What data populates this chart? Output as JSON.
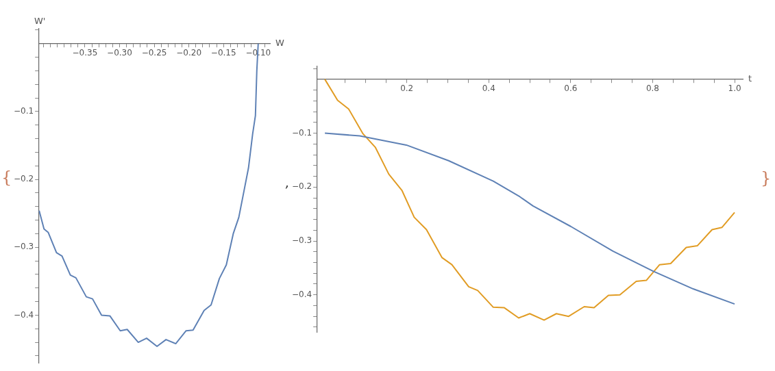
{
  "chart_data": [
    {
      "type": "line",
      "xlabel": "W",
      "ylabel": "W'",
      "marker": "none",
      "grid": false,
      "annotations": [
        "{",
        ","
      ],
      "xlim": [
        -0.417,
        -0.083
      ],
      "ylim": [
        -0.471,
        0.022
      ],
      "xticks": [
        {
          "value": -0.41,
          "label": null
        },
        {
          "value": -0.4,
          "label": null
        },
        {
          "value": -0.39,
          "label": null
        },
        {
          "value": -0.38,
          "label": null
        },
        {
          "value": -0.37,
          "label": null
        },
        {
          "value": -0.36,
          "label": null
        },
        {
          "value": -0.35,
          "label": "−0.35"
        },
        {
          "value": -0.34,
          "label": null
        },
        {
          "value": -0.33,
          "label": null
        },
        {
          "value": -0.32,
          "label": null
        },
        {
          "value": -0.31,
          "label": null
        },
        {
          "value": -0.3,
          "label": "−0.30"
        },
        {
          "value": -0.29,
          "label": null
        },
        {
          "value": -0.28,
          "label": null
        },
        {
          "value": -0.27,
          "label": null
        },
        {
          "value": -0.26,
          "label": null
        },
        {
          "value": -0.25,
          "label": "−0.25"
        },
        {
          "value": -0.24,
          "label": null
        },
        {
          "value": -0.23,
          "label": null
        },
        {
          "value": -0.22,
          "label": null
        },
        {
          "value": -0.21,
          "label": null
        },
        {
          "value": -0.2,
          "label": "−0.20"
        },
        {
          "value": -0.19,
          "label": null
        },
        {
          "value": -0.18,
          "label": null
        },
        {
          "value": -0.17,
          "label": null
        },
        {
          "value": -0.16,
          "label": null
        },
        {
          "value": -0.15,
          "label": "−0.15"
        },
        {
          "value": -0.14,
          "label": null
        },
        {
          "value": -0.13,
          "label": null
        },
        {
          "value": -0.12,
          "label": null
        },
        {
          "value": -0.11,
          "label": null
        },
        {
          "value": -0.1,
          "label": "−0.10"
        },
        {
          "value": -0.09,
          "label": null
        }
      ],
      "yticks": [
        {
          "value": 0.02,
          "label": null
        },
        {
          "value": -0.02,
          "label": null
        },
        {
          "value": -0.04,
          "label": null
        },
        {
          "value": -0.06,
          "label": null
        },
        {
          "value": -0.08,
          "label": null
        },
        {
          "value": -0.1,
          "label": "−0.1"
        },
        {
          "value": -0.12,
          "label": null
        },
        {
          "value": -0.14,
          "label": null
        },
        {
          "value": -0.16,
          "label": null
        },
        {
          "value": -0.18,
          "label": null
        },
        {
          "value": -0.2,
          "label": "−0.2"
        },
        {
          "value": -0.22,
          "label": null
        },
        {
          "value": -0.24,
          "label": null
        },
        {
          "value": -0.26,
          "label": null
        },
        {
          "value": -0.28,
          "label": null
        },
        {
          "value": -0.3,
          "label": "−0.3"
        },
        {
          "value": -0.32,
          "label": null
        },
        {
          "value": -0.34,
          "label": null
        },
        {
          "value": -0.36,
          "label": null
        },
        {
          "value": -0.38,
          "label": null
        },
        {
          "value": -0.4,
          "label": "−0.4"
        },
        {
          "value": -0.42,
          "label": null
        },
        {
          "value": -0.44,
          "label": null
        },
        {
          "value": -0.46,
          "label": null
        }
      ],
      "series": [
        {
          "color": "#5e81b5",
          "x": [
            -0.416,
            -0.409,
            -0.403,
            -0.391,
            -0.383,
            -0.371,
            -0.363,
            -0.348,
            -0.339,
            -0.326,
            -0.314,
            -0.299,
            -0.289,
            -0.273,
            -0.261,
            -0.246,
            -0.233,
            -0.219,
            -0.204,
            -0.194,
            -0.178,
            -0.168,
            -0.156,
            -0.146,
            -0.136,
            -0.128,
            -0.123,
            -0.114,
            -0.108,
            -0.104,
            -0.102,
            -0.1
          ],
          "values": [
            -0.246,
            -0.273,
            -0.278,
            -0.308,
            -0.313,
            -0.341,
            -0.345,
            -0.373,
            -0.376,
            -0.4,
            -0.401,
            -0.423,
            -0.421,
            -0.44,
            -0.434,
            -0.446,
            -0.436,
            -0.442,
            -0.423,
            -0.422,
            -0.393,
            -0.385,
            -0.346,
            -0.326,
            -0.28,
            -0.256,
            -0.23,
            -0.183,
            -0.133,
            -0.106,
            -0.04,
            0
          ]
        }
      ]
    },
    {
      "type": "line",
      "xlabel": "t",
      "marker": "none",
      "grid": false,
      "annotations": [
        "}"
      ],
      "xlim": [
        -0.02,
        1.02
      ],
      "ylim": [
        -0.47,
        0.024
      ],
      "xticks": [
        {
          "value": 0.05,
          "label": null
        },
        {
          "value": 0.1,
          "label": null
        },
        {
          "value": 0.15,
          "label": null
        },
        {
          "value": 0.2,
          "label": "0.2"
        },
        {
          "value": 0.25,
          "label": null
        },
        {
          "value": 0.3,
          "label": null
        },
        {
          "value": 0.35,
          "label": null
        },
        {
          "value": 0.4,
          "label": "0.4"
        },
        {
          "value": 0.45,
          "label": null
        },
        {
          "value": 0.5,
          "label": null
        },
        {
          "value": 0.55,
          "label": null
        },
        {
          "value": 0.6,
          "label": "0.6"
        },
        {
          "value": 0.65,
          "label": null
        },
        {
          "value": 0.7,
          "label": null
        },
        {
          "value": 0.75,
          "label": null
        },
        {
          "value": 0.8,
          "label": "0.8"
        },
        {
          "value": 0.85,
          "label": null
        },
        {
          "value": 0.9,
          "label": null
        },
        {
          "value": 0.95,
          "label": null
        },
        {
          "value": 1.0,
          "label": "1.0"
        }
      ],
      "yticks": [
        {
          "value": 0.02,
          "label": null
        },
        {
          "value": -0.02,
          "label": null
        },
        {
          "value": -0.04,
          "label": null
        },
        {
          "value": -0.06,
          "label": null
        },
        {
          "value": -0.08,
          "label": null
        },
        {
          "value": -0.1,
          "label": "−0.1"
        },
        {
          "value": -0.12,
          "label": null
        },
        {
          "value": -0.14,
          "label": null
        },
        {
          "value": -0.16,
          "label": null
        },
        {
          "value": -0.18,
          "label": null
        },
        {
          "value": -0.2,
          "label": "−0.2"
        },
        {
          "value": -0.22,
          "label": null
        },
        {
          "value": -0.24,
          "label": null
        },
        {
          "value": -0.26,
          "label": null
        },
        {
          "value": -0.28,
          "label": null
        },
        {
          "value": -0.3,
          "label": "−0.3"
        },
        {
          "value": -0.32,
          "label": null
        },
        {
          "value": -0.34,
          "label": null
        },
        {
          "value": -0.36,
          "label": null
        },
        {
          "value": -0.38,
          "label": null
        },
        {
          "value": -0.4,
          "label": "−0.4"
        },
        {
          "value": -0.42,
          "label": null
        },
        {
          "value": -0.44,
          "label": null
        },
        {
          "value": -0.46,
          "label": null
        }
      ],
      "series": [
        {
          "color": "#5e81b5",
          "x": [
            0,
            0.085,
            0.199,
            0.302,
            0.411,
            0.476,
            0.508,
            0.6,
            0.703,
            0.801,
            0.899,
            1.0
          ],
          "values": [
            -0.1,
            -0.105,
            -0.122,
            -0.151,
            -0.189,
            -0.218,
            -0.235,
            -0.273,
            -0.319,
            -0.356,
            -0.389,
            -0.417
          ]
        },
        {
          "color": "#e19c24",
          "x": [
            0,
            0.031,
            0.058,
            0.093,
            0.123,
            0.156,
            0.188,
            0.218,
            0.248,
            0.286,
            0.31,
            0.351,
            0.373,
            0.411,
            0.438,
            0.473,
            0.5,
            0.535,
            0.565,
            0.595,
            0.633,
            0.657,
            0.692,
            0.72,
            0.76,
            0.785,
            0.817,
            0.844,
            0.882,
            0.909,
            0.945,
            0.969,
            1.0
          ],
          "values": [
            0,
            -0.039,
            -0.055,
            -0.101,
            -0.126,
            -0.176,
            -0.206,
            -0.256,
            -0.279,
            -0.331,
            -0.344,
            -0.385,
            -0.392,
            -0.423,
            -0.424,
            -0.443,
            -0.435,
            -0.447,
            -0.435,
            -0.44,
            -0.422,
            -0.424,
            -0.401,
            -0.4,
            -0.375,
            -0.373,
            -0.344,
            -0.342,
            -0.312,
            -0.309,
            -0.279,
            -0.275,
            -0.247
          ]
        }
      ]
    }
  ]
}
